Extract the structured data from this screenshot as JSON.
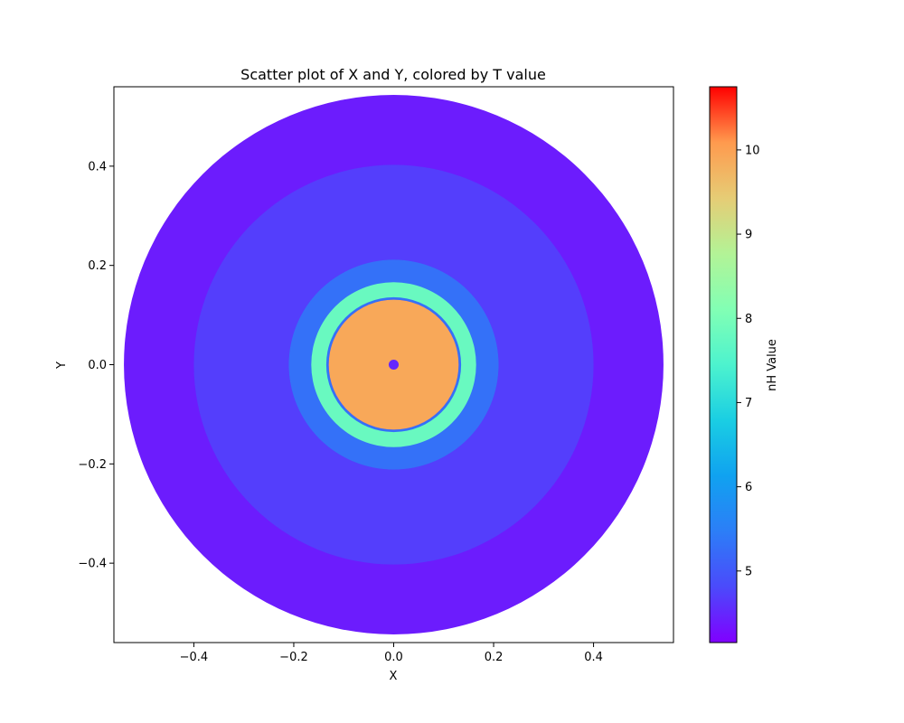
{
  "chart_data": {
    "type": "scatter",
    "title": "Scatter plot of X and Y, colored by T value",
    "xlabel": "X",
    "ylabel": "Y",
    "xlim": [
      -0.56,
      0.56
    ],
    "ylim": [
      -0.56,
      0.56
    ],
    "xticks": [
      -0.4,
      -0.2,
      0.0,
      0.2,
      0.4
    ],
    "xtick_labels": [
      "−0.4",
      "−0.2",
      "0.0",
      "0.2",
      "0.4"
    ],
    "yticks": [
      -0.4,
      -0.2,
      0.0,
      0.2,
      0.4
    ],
    "ytick_labels": [
      "−0.4",
      "−0.2",
      "0.0",
      "0.2",
      "0.4"
    ],
    "grid": false,
    "colormap": "rainbow",
    "colorbar": {
      "label": "nH Value",
      "range": [
        4.15,
        10.75
      ],
      "ticks": [
        5,
        6,
        7,
        8,
        9,
        10
      ],
      "tick_labels": [
        "5",
        "6",
        "7",
        "8",
        "9",
        "10"
      ]
    },
    "regions": [
      {
        "shape": "disk",
        "r_min": 0.0,
        "r_max": 0.54,
        "nH": 4.4
      },
      {
        "shape": "annulus",
        "r_min": 0.21,
        "r_max": 0.4,
        "nH": 4.7
      },
      {
        "shape": "annulus",
        "r_min": 0.13,
        "r_max": 0.21,
        "nH": 5.3
      },
      {
        "shape": "annulus",
        "r_min": 0.135,
        "r_max": 0.165,
        "nH": 7.8
      },
      {
        "shape": "disk",
        "r_min": 0.0,
        "r_max": 0.13,
        "nH": 9.9
      },
      {
        "shape": "disk",
        "r_min": 0.0,
        "r_max": 0.01,
        "nH": 4.5
      }
    ]
  }
}
